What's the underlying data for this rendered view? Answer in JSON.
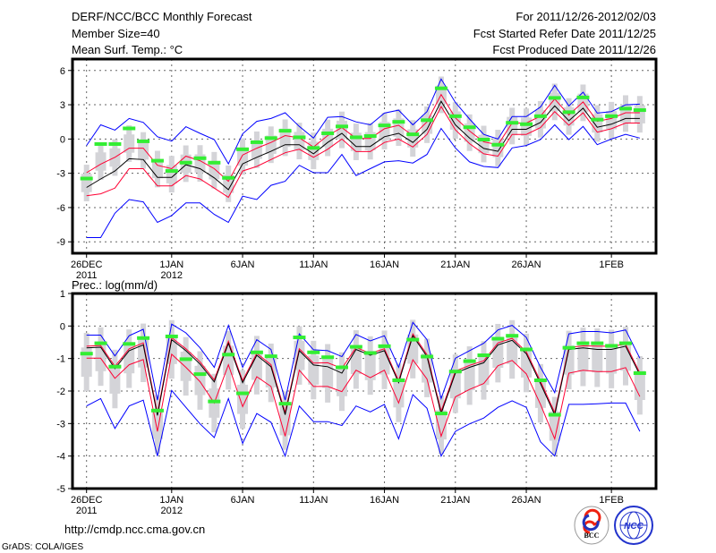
{
  "header": {
    "title": "DERF/NCC/BCC Monthly Forecast",
    "member_size": "Member Size=40",
    "variable": "Mean Surf. Temp.: °C",
    "period": "For 2011/12/26-2012/02/03",
    "started": "Fcst Started Refer Date 2011/12/25",
    "produced": "Fcst Produced Date 2011/12/26"
  },
  "footer": {
    "url": "http://cmdp.ncc.cma.gov.cn",
    "credit": "GrADS: COLA/IGES",
    "logo_bcc": "BCC",
    "logo_ncc": "NCC"
  },
  "colors": {
    "max_min": "#0000ff",
    "spread": "#ff0033",
    "mean": "#000000",
    "obs": "#33ee33",
    "box": "#d4d4d8",
    "grid": "#666666"
  },
  "chart_data": [
    {
      "type": "line",
      "title": "Mean Surf. Temp.: °C",
      "ylim": [
        -10,
        7
      ],
      "yticks": [
        "6",
        "3",
        "0",
        "-3",
        "-6",
        "-9"
      ],
      "ytick_values": [
        6,
        3,
        0,
        -3,
        -6,
        -9
      ],
      "xticks": [
        {
          "day": 0,
          "label": "26DEC",
          "sub": "2011"
        },
        {
          "day": 6,
          "label": "1JAN",
          "sub": "2012"
        },
        {
          "day": 11,
          "label": "6JAN",
          "sub": ""
        },
        {
          "day": 16,
          "label": "11JAN",
          "sub": ""
        },
        {
          "day": 21,
          "label": "16JAN",
          "sub": ""
        },
        {
          "day": 26,
          "label": "21JAN",
          "sub": ""
        },
        {
          "day": 31,
          "label": "26JAN",
          "sub": ""
        },
        {
          "day": 37,
          "label": "1FEB",
          "sub": ""
        }
      ],
      "grid": true,
      "box_half": 0.8,
      "whisker_half": 1.6,
      "series": [
        {
          "name": "max",
          "color": "#0000ff",
          "values": [
            -0.57,
            1.24,
            0.78,
            1.8,
            1.45,
            0.2,
            -0.18,
            1.08,
            0.5,
            -0.05,
            -2.17,
            0.46,
            1.55,
            1.8,
            2.3,
            1.1,
            0.08,
            1.9,
            1.96,
            1.5,
            1.24,
            2.27,
            2.53,
            1.24,
            2.4,
            5.25,
            3.2,
            1.75,
            0.4,
            0,
            1.96,
            1.96,
            2.8,
            4.7,
            2.9,
            4.1,
            2.27,
            2.4,
            3.0,
            3.05
          ]
        },
        {
          "name": "min",
          "color": "#0000ff",
          "values": [
            -8.63,
            -8.63,
            -6.5,
            -5.3,
            -5.5,
            -7.3,
            -6.7,
            -5.6,
            -5.6,
            -6.6,
            -7.3,
            -5.0,
            -5.3,
            -4.05,
            -3.7,
            -2.3,
            -2.95,
            -2.95,
            -1.35,
            -3.2,
            -2.6,
            -2.0,
            -1.9,
            -2.1,
            -1.35,
            0.93,
            -0.78,
            -2.0,
            -2.4,
            -2.5,
            -0.78,
            -0.57,
            -0.05,
            1.24,
            -0.05,
            1.1,
            -0.5,
            0,
            0.4,
            0.08
          ]
        },
        {
          "name": "mean+sd",
          "color": "#ff0033",
          "values": [
            -2.95,
            -2.2,
            -1.6,
            -0.8,
            -0.8,
            -2.3,
            -2.6,
            -1.5,
            -1.9,
            -2.6,
            -3.7,
            -1.4,
            -0.8,
            -0.3,
            0.3,
            0.1,
            -0.7,
            0.3,
            1.0,
            0.05,
            0.05,
            0.9,
            1.2,
            0.3,
            1.5,
            3.9,
            1.85,
            0.7,
            -0.25,
            -0.5,
            1.4,
            1.4,
            2.0,
            3.5,
            2.1,
            3.25,
            1.55,
            1.8,
            2.3,
            2.3
          ]
        },
        {
          "name": "mean-sd",
          "color": "#ff0033",
          "values": [
            -4.96,
            -4.8,
            -4.3,
            -2.6,
            -2.6,
            -4.1,
            -4.1,
            -3.2,
            -3.5,
            -4.3,
            -5.1,
            -2.8,
            -2.4,
            -1.8,
            -1.2,
            -0.9,
            -1.6,
            -0.9,
            0.0,
            -1.1,
            -1.1,
            -0.3,
            0.0,
            -0.7,
            0.4,
            2.85,
            0.8,
            -0.4,
            -1.3,
            -1.5,
            0.4,
            0.4,
            1.0,
            2.4,
            1.2,
            2.3,
            0.6,
            0.9,
            1.4,
            1.4
          ]
        },
        {
          "name": "mean",
          "color": "#000000",
          "values": [
            -4.24,
            -3.5,
            -2.8,
            -1.73,
            -1.8,
            -3.36,
            -3.36,
            -2.25,
            -2.6,
            -3.4,
            -4.44,
            -2.17,
            -1.6,
            -1.08,
            -0.5,
            -0.5,
            -1.3,
            -0.3,
            0.5,
            -0.65,
            -0.65,
            0.2,
            0.5,
            -0.3,
            0.85,
            3.3,
            1.24,
            0.08,
            -0.83,
            -1.08,
            0.85,
            0.85,
            1.45,
            2.9,
            1.6,
            2.7,
            1.03,
            1.3,
            1.8,
            1.8
          ]
        },
        {
          "name": "obs",
          "color": "#33ee33",
          "values": [
            -3.46,
            -0.44,
            -0.44,
            0.93,
            -0.2,
            -1.9,
            -2.8,
            -2.07,
            -1.68,
            -2.07,
            -3.4,
            -0.9,
            -0.28,
            0.08,
            0.72,
            0.15,
            -0.78,
            0.5,
            1.1,
            0.15,
            0.26,
            1.19,
            1.5,
            0.41,
            1.65,
            4.44,
            2.0,
            1.03,
            -0.05,
            -0.5,
            1.42,
            1.3,
            2.0,
            3.6,
            2.35,
            3.64,
            1.7,
            2.0,
            2.66,
            2.53
          ]
        }
      ]
    },
    {
      "type": "line",
      "title": "Prec.: log(mm/d)",
      "ylim": [
        -5,
        1
      ],
      "yticks": [
        "1",
        "0",
        "-1",
        "-2",
        "-3",
        "-4",
        "-5"
      ],
      "ytick_values": [
        1,
        0,
        -1,
        -2,
        -3,
        -4,
        -5
      ],
      "xticks": [
        {
          "day": 0,
          "label": "26DEC",
          "sub": "2011"
        },
        {
          "day": 6,
          "label": "1JAN",
          "sub": "2012"
        },
        {
          "day": 11,
          "label": "6JAN",
          "sub": ""
        },
        {
          "day": 16,
          "label": "11JAN",
          "sub": ""
        },
        {
          "day": 21,
          "label": "16JAN",
          "sub": ""
        },
        {
          "day": 26,
          "label": "21JAN",
          "sub": ""
        },
        {
          "day": 31,
          "label": "26JAN",
          "sub": ""
        },
        {
          "day": 37,
          "label": "1FEB",
          "sub": ""
        }
      ],
      "grid": true,
      "box_half": 0.45,
      "whisker_half": 0.9,
      "series": [
        {
          "name": "max",
          "color": "#0000ff",
          "values": [
            -0.28,
            -0.28,
            -0.92,
            -0.3,
            -0.1,
            -2.28,
            0.06,
            -0.21,
            -0.67,
            -1.27,
            0.02,
            -1.27,
            -0.42,
            -0.72,
            -2.28,
            -0.24,
            -0.73,
            -0.76,
            -0.94,
            -0.26,
            -0.46,
            -0.3,
            -1.27,
            0.11,
            -0.42,
            -2.23,
            -0.99,
            -0.76,
            -0.53,
            -0.12,
            0.02,
            -0.35,
            -1.27,
            -2.05,
            -0.24,
            -0.17,
            -0.17,
            -0.21,
            -0.12,
            -0.99
          ]
        },
        {
          "name": "min",
          "color": "#0000ff",
          "values": [
            -2.46,
            -2.23,
            -3.15,
            -2.46,
            -2.28,
            -4.0,
            -1.98,
            -2.5,
            -3.01,
            -3.43,
            -2.23,
            -3.61,
            -2.69,
            -2.96,
            -4.0,
            -2.46,
            -2.94,
            -2.94,
            -3.06,
            -2.46,
            -2.64,
            -2.41,
            -3.47,
            -2.11,
            -2.53,
            -4.0,
            -3.24,
            -3.01,
            -2.83,
            -2.5,
            -2.3,
            -2.5,
            -3.56,
            -4.0,
            -2.41,
            -2.41,
            -2.39,
            -2.37,
            -2.37,
            -3.24
          ]
        },
        {
          "name": "mean+sd",
          "color": "#ff0033",
          "values": [
            -0.62,
            -0.6,
            -1.24,
            -0.7,
            -0.52,
            -2.68,
            -0.36,
            -0.7,
            -1.1,
            -1.66,
            -0.47,
            -1.68,
            -0.84,
            -1.19,
            -2.66,
            -0.7,
            -1.14,
            -1.13,
            -1.3,
            -0.66,
            -0.84,
            -0.7,
            -1.68,
            -0.24,
            -0.88,
            -2.62,
            -1.39,
            -1.21,
            -1.07,
            -0.52,
            -0.38,
            -0.79,
            -1.7,
            -2.66,
            -0.66,
            -0.61,
            -0.62,
            -0.62,
            -0.56,
            -1.44
          ]
        },
        {
          "name": "mean-sd",
          "color": "#ff0033",
          "values": [
            -0.99,
            -0.99,
            -1.61,
            -1.19,
            -1.03,
            -3.24,
            -0.87,
            -1.27,
            -1.71,
            -2.37,
            -1.19,
            -2.48,
            -1.56,
            -1.86,
            -3.39,
            -1.36,
            -1.86,
            -1.86,
            -2.02,
            -1.36,
            -1.59,
            -1.36,
            -2.37,
            -1.04,
            -1.63,
            -3.39,
            -2.18,
            -1.95,
            -1.77,
            -1.22,
            -1.06,
            -1.47,
            -2.41,
            -3.47,
            -1.45,
            -1.36,
            -1.4,
            -1.4,
            -1.28,
            -2.17
          ]
        },
        {
          "name": "mean",
          "color": "#000000",
          "values": [
            -0.67,
            -0.65,
            -1.31,
            -0.76,
            -0.58,
            -2.75,
            -0.42,
            -0.76,
            -1.17,
            -1.72,
            -0.53,
            -1.74,
            -0.9,
            -1.25,
            -2.73,
            -0.76,
            -1.2,
            -1.25,
            -1.45,
            -0.72,
            -0.9,
            -0.76,
            -1.74,
            -0.3,
            -0.94,
            -2.69,
            -1.45,
            -1.27,
            -1.13,
            -0.58,
            -0.44,
            -0.85,
            -1.77,
            -2.73,
            -0.72,
            -0.67,
            -0.72,
            -0.72,
            -0.62,
            -1.5
          ]
        },
        {
          "name": "obs",
          "color": "#33ee33",
          "values": [
            -0.85,
            -0.53,
            -1.25,
            -0.55,
            -0.37,
            -2.6,
            -0.32,
            -1.02,
            -1.48,
            -2.32,
            -0.88,
            -2.07,
            -0.81,
            -0.93,
            -2.39,
            -0.35,
            -0.81,
            -0.96,
            -1.27,
            -0.64,
            -0.83,
            -0.62,
            -1.67,
            -0.42,
            -0.94,
            -2.69,
            -1.4,
            -1.08,
            -0.9,
            -0.39,
            -0.3,
            -0.72,
            -1.67,
            -2.73,
            -0.67,
            -0.53,
            -0.53,
            -0.61,
            -0.53,
            -1.45
          ]
        }
      ]
    }
  ]
}
